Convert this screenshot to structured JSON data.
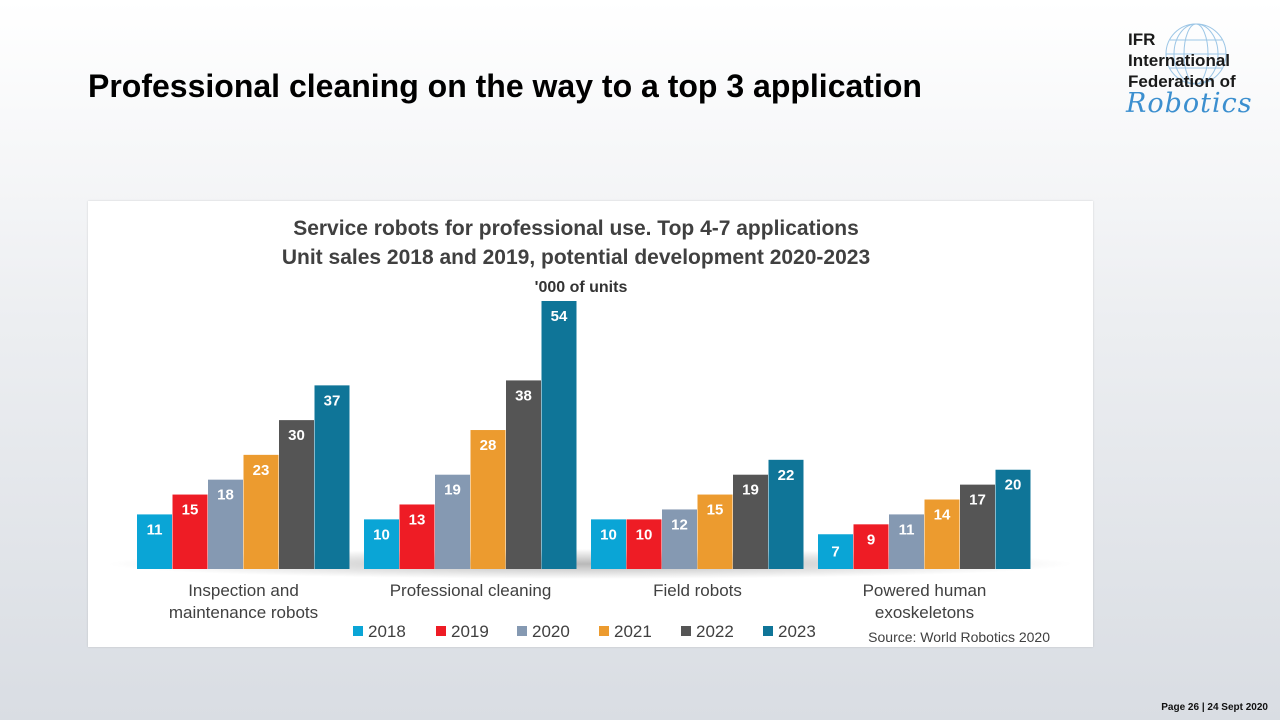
{
  "slide": {
    "title": "Professional cleaning on the way to a top 3 application",
    "footer": "Page 26 | 24 Sept 2020"
  },
  "logo": {
    "line1": "IFR",
    "line2": "International",
    "line3": "Federation of",
    "script": "Robotics"
  },
  "colors": {
    "2018": "#0aa5d6",
    "2019": "#ee1c25",
    "2020": "#8599b2",
    "2021": "#ec9b2f",
    "2022": "#555555",
    "2023": "#0f7598"
  },
  "chart_data": {
    "type": "bar",
    "title": "Service robots for professional use. Top 4-7 applications",
    "subtitle": "Unit sales 2018 and 2019, potential development 2020-2023",
    "unit_label": "'000 of units",
    "source": "Source: World Robotics 2020",
    "legend_position": "bottom",
    "categories": [
      [
        "Inspection and",
        "maintenance robots"
      ],
      [
        "Professional cleaning"
      ],
      [
        "Field robots"
      ],
      [
        "Powered human",
        "exoskeletons"
      ]
    ],
    "series": [
      {
        "name": "2018",
        "values": [
          11,
          10,
          10,
          7
        ]
      },
      {
        "name": "2019",
        "values": [
          15,
          13,
          10,
          9
        ]
      },
      {
        "name": "2020",
        "values": [
          18,
          19,
          12,
          11
        ]
      },
      {
        "name": "2021",
        "values": [
          23,
          28,
          15,
          14
        ]
      },
      {
        "name": "2022",
        "values": [
          30,
          38,
          19,
          17
        ]
      },
      {
        "name": "2023",
        "values": [
          37,
          54,
          22,
          20
        ]
      }
    ],
    "ylim": [
      0,
      54
    ],
    "grid": false
  }
}
